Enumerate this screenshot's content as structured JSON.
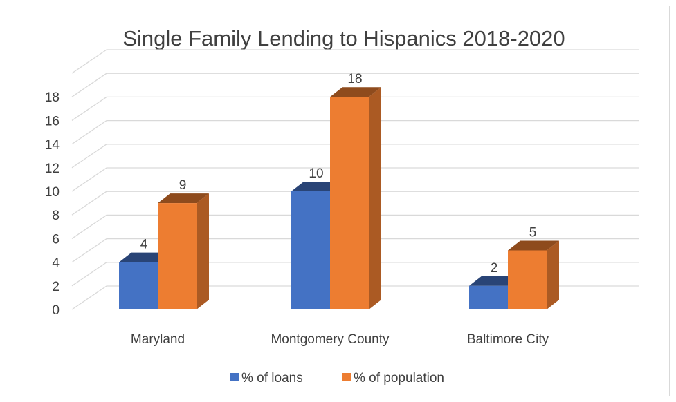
{
  "chart_data": {
    "type": "bar",
    "title": "Single Family Lending to Hispanics 2018-2020",
    "categories": [
      "Maryland",
      "Montgomery County",
      "Baltimore City"
    ],
    "series": [
      {
        "name": "% of loans",
        "values": [
          4,
          10,
          2
        ],
        "color": "#4472C4"
      },
      {
        "name": "% of population",
        "values": [
          9,
          18,
          5
        ],
        "color": "#ED7D31"
      }
    ],
    "y_ticks": [
      "0",
      "2",
      "4",
      "6",
      "8",
      "10",
      "12",
      "14",
      "16",
      "18"
    ],
    "ylim": [
      0,
      20
    ],
    "grid": true,
    "legend": "bottom",
    "style": "3d-clustered-column"
  }
}
